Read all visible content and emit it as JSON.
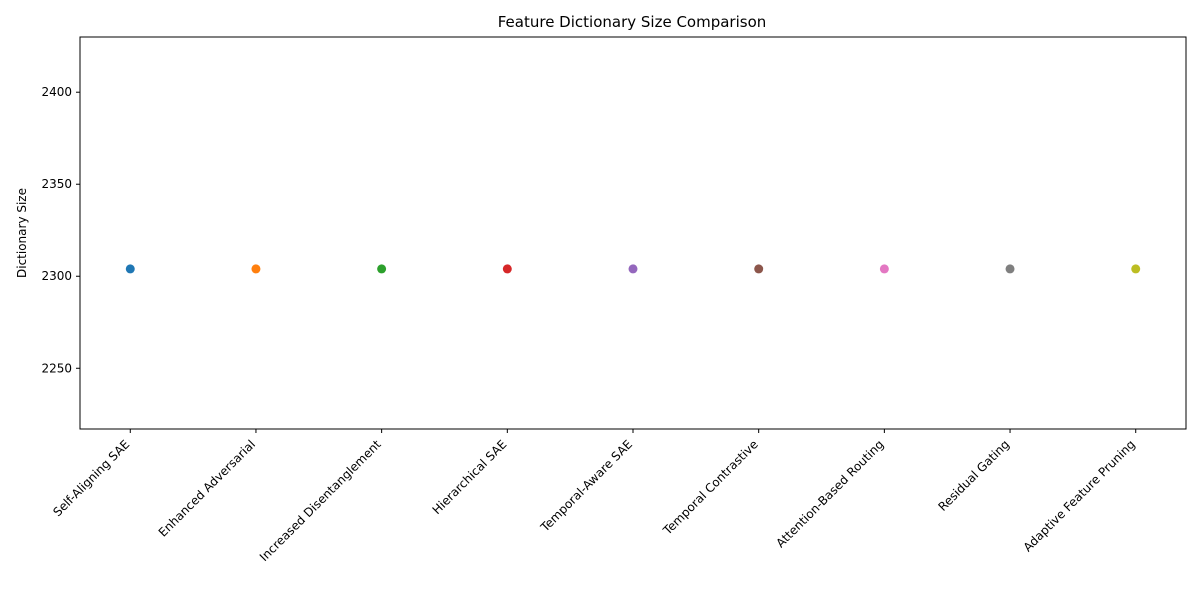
{
  "chart_data": {
    "type": "scatter",
    "title": "Feature Dictionary Size Comparison",
    "xlabel": "",
    "ylabel": "Dictionary Size",
    "categories": [
      "Self-Aligning SAE",
      "Enhanced Adversarial",
      "Increased Disentanglement",
      "Hierarchical SAE",
      "Temporal-Aware SAE",
      "Temporal Contrastive",
      "Attention-Based Routing",
      "Residual Gating",
      "Adaptive Feature Pruning"
    ],
    "values": [
      2304,
      2304,
      2304,
      2304,
      2304,
      2304,
      2304,
      2304,
      2304
    ],
    "colors": [
      "#1f77b4",
      "#ff7f0e",
      "#2ca02c",
      "#d62728",
      "#9467bd",
      "#8c564b",
      "#e377c2",
      "#7f7f7f",
      "#bcbd22"
    ],
    "ylim": [
      2217,
      2430
    ],
    "yticks": [
      2200,
      2250,
      2300,
      2350,
      2400
    ],
    "grid": false,
    "legend": "none"
  }
}
